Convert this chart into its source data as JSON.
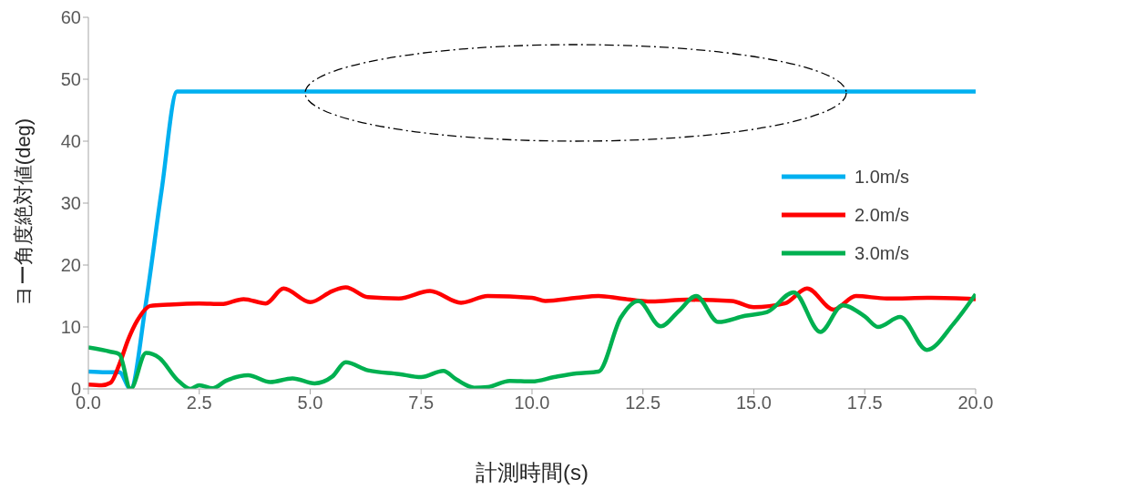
{
  "chart_data": {
    "type": "line",
    "xlabel": "計測時間(s)",
    "ylabel": "ヨー角度絶対値(deg)",
    "xlim": [
      0,
      20
    ],
    "xticks": [
      {
        "value": 0,
        "label": "0.0"
      },
      {
        "value": 2.5,
        "label": "2.5"
      },
      {
        "value": 5,
        "label": "5.0"
      },
      {
        "value": 7.5,
        "label": "7.5"
      },
      {
        "value": 10,
        "label": "10.0"
      },
      {
        "value": 12.5,
        "label": "12.5"
      },
      {
        "value": 15,
        "label": "15.0"
      },
      {
        "value": 17.5,
        "label": "17.5"
      },
      {
        "value": 20,
        "label": "20.0"
      }
    ],
    "ylim": [
      0,
      60
    ],
    "yticks": [
      0,
      10,
      20,
      30,
      40,
      50,
      60
    ],
    "grid": false,
    "legend": "right",
    "marker": "none",
    "line_style": "solid",
    "series": [
      {
        "name": "1.0m/s",
        "color": "#00b0f0",
        "x": [
          0,
          0.4,
          0.7,
          0.95,
          1.3,
          1.65,
          2.0,
          20
        ],
        "values": [
          2.8,
          2.7,
          2.7,
          0,
          14,
          32,
          48,
          48
        ]
      },
      {
        "name": "2.0m/s",
        "color": "#ff0000",
        "x": [
          0,
          0.3,
          0.5,
          0.7,
          0.9,
          1.1,
          1.4,
          1.8,
          2.5,
          3.0,
          3.5,
          4.0,
          4.4,
          5.0,
          5.5,
          5.8,
          6.3,
          7.0,
          7.7,
          8.4,
          9.0,
          10,
          10.3,
          11,
          11.5,
          12.0,
          12.7,
          13.5,
          14.5,
          15.0,
          15.7,
          16.2,
          16.8,
          17.3,
          18,
          19,
          20
        ],
        "values": [
          0.7,
          0.6,
          1,
          4,
          8,
          11,
          13.4,
          13.6,
          13.8,
          13.7,
          14.5,
          13.8,
          16.2,
          14,
          15.8,
          16.4,
          14.8,
          14.6,
          15.8,
          13.9,
          15,
          14.7,
          14.2,
          14.7,
          15,
          14.6,
          14.1,
          14.4,
          14.2,
          13.2,
          13.8,
          16.2,
          12.8,
          15,
          14.6,
          14.7,
          14.5
        ]
      },
      {
        "name": "3.0m/s",
        "color": "#00b050",
        "x": [
          0,
          0.5,
          0.7,
          0.95,
          1.3,
          1.6,
          2.0,
          2.3,
          2.5,
          2.8,
          3.1,
          3.6,
          4.1,
          4.6,
          5.1,
          5.5,
          5.8,
          6.3,
          7.0,
          7.5,
          8.0,
          8.3,
          8.7,
          9.0,
          9.5,
          10.0,
          10.5,
          11.0,
          11.5,
          12.0,
          12.4,
          12.9,
          13.3,
          13.7,
          14.2,
          14.8,
          15.3,
          15.9,
          16.5,
          17.0,
          17.5,
          17.8,
          18.3,
          18.9,
          19.5,
          20
        ],
        "values": [
          6.7,
          6,
          5.6,
          0,
          5.8,
          5,
          1.5,
          0,
          0.6,
          0.1,
          1.3,
          2.2,
          1.1,
          1.7,
          0.9,
          2,
          4.3,
          3,
          2.4,
          1.9,
          2.9,
          1.5,
          0.2,
          0.3,
          1.3,
          1.2,
          1.9,
          2.5,
          2.8,
          11.5,
          14.2,
          10.1,
          12.5,
          15,
          10.8,
          11.8,
          12.4,
          15.6,
          9.2,
          13.5,
          11.7,
          10,
          11.6,
          6.3,
          10.5,
          15.3
        ]
      }
    ]
  }
}
